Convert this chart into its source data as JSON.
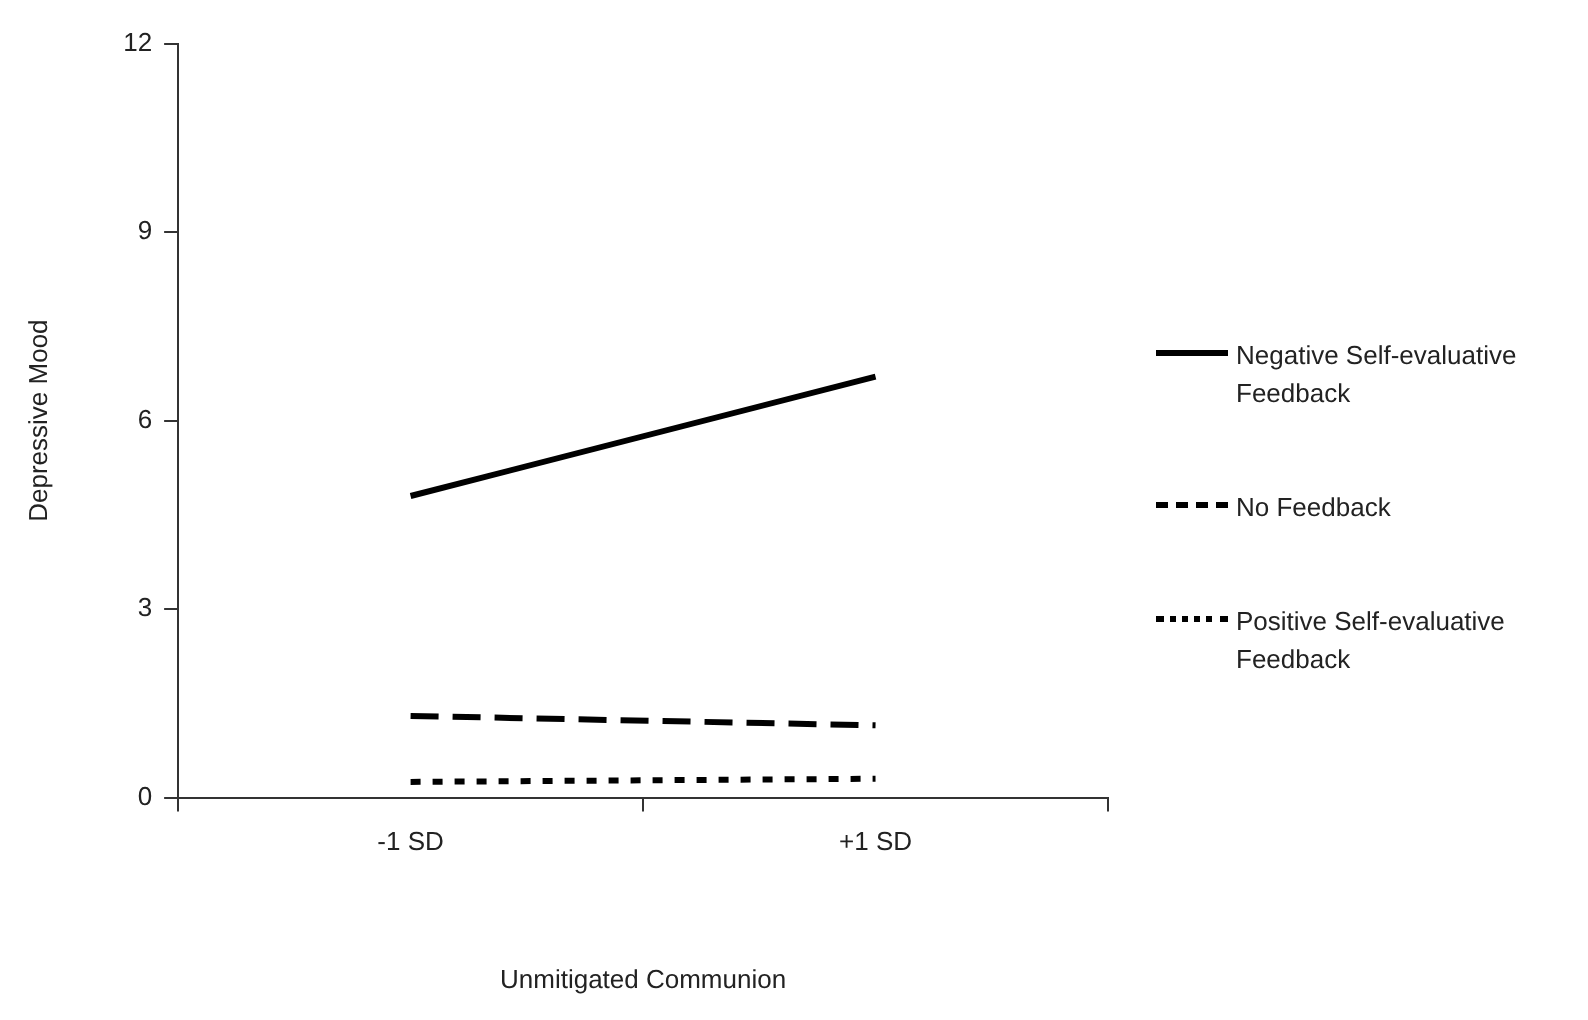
{
  "chart_data": {
    "type": "line",
    "xlabel": "Unmitigated Communion",
    "ylabel": "Depressive Mood",
    "categories": [
      "-1 SD",
      "+1 SD"
    ],
    "ylim": [
      0,
      12
    ],
    "yticks": [
      0,
      3,
      6,
      9,
      12
    ],
    "grid": false,
    "legend": "right",
    "marker": "none",
    "series": [
      {
        "name": "Negative Self-evaluative Feedback",
        "color": "#000000",
        "line_style": "solid",
        "values": [
          4.8,
          6.7
        ]
      },
      {
        "name": "No Feedback",
        "color": "#000000",
        "line_style": "dashed",
        "values": [
          1.3,
          1.15
        ]
      },
      {
        "name": "Positive Self-evaluative Feedback",
        "color": "#000000",
        "line_style": "dotted",
        "values": [
          0.25,
          0.3
        ]
      }
    ]
  }
}
